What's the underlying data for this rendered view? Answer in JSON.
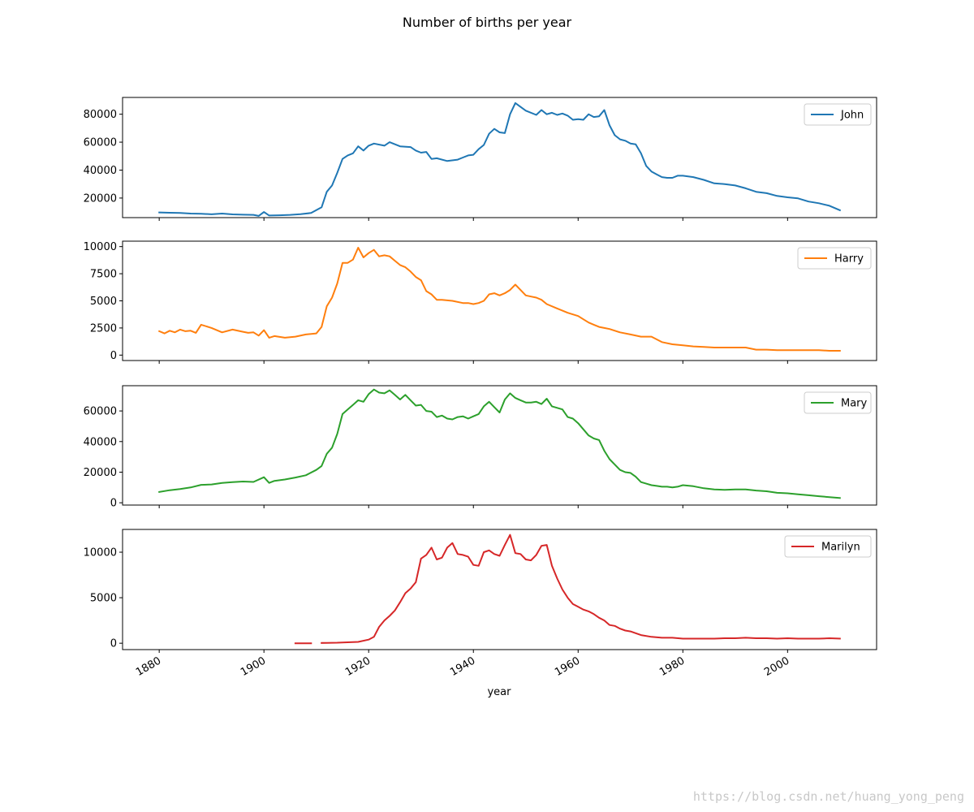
{
  "watermark": "https://blog.csdn.net/huang_yong_peng",
  "chart_data": {
    "type": "line",
    "title": "Number of births per year",
    "xlabel": "year",
    "xlim": [
      1873,
      2017
    ],
    "x_ticks": [
      1880,
      1900,
      1920,
      1940,
      1960,
      1980,
      2000
    ],
    "x_tick_labels": [
      "1880",
      "1900",
      "1920",
      "1940",
      "1960",
      "1980",
      "2000"
    ],
    "legend_position": "upper right",
    "grid": false,
    "subplots": [
      {
        "name": "John",
        "color": "#1f77b4",
        "ylim": [
          6000,
          92000
        ],
        "y_ticks": [
          20000,
          40000,
          60000,
          80000
        ],
        "y_tick_labels": [
          "20000",
          "40000",
          "60000",
          "80000"
        ],
        "x": [
          1880,
          1882,
          1884,
          1886,
          1888,
          1890,
          1892,
          1894,
          1896,
          1898,
          1899,
          1900,
          1901,
          1903,
          1905,
          1907,
          1909,
          1911,
          1912,
          1913,
          1914,
          1915,
          1916,
          1917,
          1918,
          1919,
          1920,
          1921,
          1923,
          1924,
          1926,
          1928,
          1929,
          1930,
          1931,
          1932,
          1933,
          1935,
          1937,
          1938,
          1939,
          1940,
          1941,
          1942,
          1943,
          1944,
          1945,
          1946,
          1947,
          1948,
          1950,
          1952,
          1953,
          1954,
          1955,
          1956,
          1957,
          1958,
          1959,
          1960,
          1961,
          1962,
          1963,
          1964,
          1965,
          1966,
          1967,
          1968,
          1969,
          1970,
          1971,
          1972,
          1973,
          1974,
          1975,
          1976,
          1977,
          1978,
          1979,
          1980,
          1982,
          1984,
          1986,
          1988,
          1990,
          1992,
          1994,
          1996,
          1998,
          2000,
          2002,
          2004,
          2006,
          2008,
          2010
        ],
        "values": [
          9700,
          9500,
          9300,
          8900,
          8800,
          8400,
          8900,
          8300,
          8100,
          8000,
          7200,
          10000,
          7500,
          7700,
          8000,
          8500,
          9300,
          13400,
          24500,
          29000,
          38000,
          48000,
          50500,
          52000,
          57000,
          54000,
          57500,
          59000,
          57500,
          60000,
          57000,
          56500,
          54000,
          52500,
          53000,
          48000,
          48500,
          46500,
          47500,
          49000,
          50500,
          51000,
          55000,
          58000,
          66000,
          69500,
          67000,
          66500,
          80000,
          88000,
          82500,
          79500,
          83000,
          80000,
          81000,
          79500,
          80500,
          79000,
          76000,
          76500,
          76000,
          80000,
          78000,
          78500,
          83000,
          72000,
          65000,
          62000,
          61000,
          59000,
          58500,
          52000,
          43000,
          39000,
          37000,
          35000,
          34500,
          34500,
          36000,
          36000,
          35000,
          33000,
          30500,
          30000,
          29000,
          27000,
          24500,
          23500,
          21500,
          20500,
          19800,
          17500,
          16300,
          14500,
          11300
        ]
      },
      {
        "name": "Harry",
        "color": "#ff7f0e",
        "ylim": [
          -500,
          10500
        ],
        "y_ticks": [
          0,
          2500,
          5000,
          7500,
          10000
        ],
        "y_tick_labels": [
          "0",
          "2500",
          "5000",
          "7500",
          "10000"
        ],
        "x": [
          1880,
          1881,
          1882,
          1883,
          1884,
          1885,
          1886,
          1887,
          1888,
          1890,
          1892,
          1894,
          1896,
          1897,
          1898,
          1899,
          1900,
          1901,
          1902,
          1904,
          1906,
          1908,
          1910,
          1911,
          1912,
          1913,
          1914,
          1915,
          1916,
          1917,
          1918,
          1919,
          1920,
          1921,
          1922,
          1923,
          1924,
          1925,
          1926,
          1927,
          1928,
          1929,
          1930,
          1931,
          1932,
          1933,
          1934,
          1936,
          1938,
          1939,
          1940,
          1941,
          1942,
          1943,
          1944,
          1945,
          1946,
          1947,
          1948,
          1949,
          1950,
          1951,
          1952,
          1953,
          1954,
          1956,
          1958,
          1960,
          1961,
          1962,
          1963,
          1964,
          1965,
          1966,
          1968,
          1970,
          1972,
          1974,
          1976,
          1978,
          1980,
          1982,
          1984,
          1986,
          1988,
          1990,
          1992,
          1994,
          1996,
          1998,
          2000,
          2002,
          2004,
          2006,
          2008,
          2010
        ],
        "values": [
          2200,
          2000,
          2250,
          2100,
          2350,
          2200,
          2250,
          2050,
          2800,
          2500,
          2100,
          2350,
          2150,
          2050,
          2100,
          1800,
          2300,
          1600,
          1750,
          1600,
          1700,
          1900,
          2000,
          2600,
          4500,
          5300,
          6600,
          8500,
          8500,
          8800,
          9900,
          9000,
          9400,
          9700,
          9100,
          9200,
          9100,
          8700,
          8300,
          8100,
          7700,
          7200,
          6900,
          5900,
          5600,
          5100,
          5100,
          5000,
          4800,
          4800,
          4700,
          4800,
          5000,
          5600,
          5700,
          5500,
          5700,
          6000,
          6500,
          6000,
          5500,
          5400,
          5300,
          5100,
          4700,
          4300,
          3900,
          3600,
          3300,
          3000,
          2800,
          2600,
          2500,
          2400,
          2100,
          1900,
          1700,
          1700,
          1200,
          1000,
          900,
          800,
          750,
          700,
          700,
          700,
          700,
          500,
          500,
          450,
          450,
          450,
          450,
          450,
          400,
          400
        ]
      },
      {
        "name": "Mary",
        "color": "#2ca02c",
        "ylim": [
          -1500,
          76500
        ],
        "y_ticks": [
          0,
          20000,
          40000,
          60000
        ],
        "y_tick_labels": [
          "0",
          "20000",
          "40000",
          "60000"
        ],
        "x": [
          1880,
          1882,
          1884,
          1886,
          1888,
          1890,
          1892,
          1894,
          1896,
          1898,
          1900,
          1901,
          1902,
          1904,
          1906,
          1908,
          1910,
          1911,
          1912,
          1913,
          1914,
          1915,
          1916,
          1917,
          1918,
          1919,
          1920,
          1921,
          1922,
          1923,
          1924,
          1925,
          1926,
          1927,
          1928,
          1929,
          1930,
          1931,
          1932,
          1933,
          1934,
          1935,
          1936,
          1937,
          1938,
          1939,
          1940,
          1941,
          1942,
          1943,
          1944,
          1945,
          1946,
          1947,
          1948,
          1949,
          1950,
          1951,
          1952,
          1953,
          1954,
          1955,
          1956,
          1957,
          1958,
          1959,
          1960,
          1961,
          1962,
          1963,
          1964,
          1965,
          1966,
          1967,
          1968,
          1969,
          1970,
          1971,
          1972,
          1973,
          1974,
          1975,
          1976,
          1977,
          1978,
          1979,
          1980,
          1982,
          1984,
          1986,
          1988,
          1990,
          1992,
          1994,
          1996,
          1998,
          2000,
          2002,
          2004,
          2006,
          2008,
          2010
        ],
        "values": [
          7100,
          8200,
          9000,
          10000,
          11700,
          12000,
          13000,
          13500,
          13900,
          13600,
          16700,
          13000,
          14300,
          15200,
          16500,
          18000,
          21500,
          24000,
          32000,
          36000,
          45000,
          58000,
          61000,
          64000,
          67000,
          66000,
          71000,
          74000,
          72000,
          71500,
          73500,
          70500,
          67500,
          70500,
          67000,
          63500,
          64000,
          60000,
          59500,
          56000,
          57000,
          55000,
          54500,
          56000,
          56500,
          55000,
          56500,
          58000,
          63000,
          66000,
          62500,
          59000,
          67500,
          71500,
          68500,
          67000,
          65500,
          65500,
          66000,
          64500,
          68000,
          63000,
          62000,
          61000,
          56000,
          55000,
          52000,
          48000,
          44000,
          42000,
          41000,
          34000,
          28500,
          25000,
          21500,
          20000,
          19500,
          17000,
          13500,
          12500,
          11500,
          11000,
          10500,
          10500,
          10000,
          10500,
          11500,
          10800,
          9500,
          8700,
          8500,
          8700,
          8700,
          8000,
          7500,
          6500,
          6200,
          5500,
          4900,
          4300,
          3700,
          3100
        ]
      },
      {
        "name": "Marilyn",
        "color": "#d62728",
        "ylim": [
          -700,
          12500
        ],
        "y_ticks": [
          0,
          5000,
          10000
        ],
        "y_tick_labels": [
          "0",
          "5000",
          "10000"
        ],
        "segments": [
          {
            "x": [
              1906,
              1909
            ],
            "values": [
              0,
              0
            ]
          },
          {
            "x": [
              1911,
              1912,
              1914,
              1916,
              1918,
              1920,
              1921,
              1922,
              1923,
              1924,
              1925,
              1926,
              1927,
              1928,
              1929,
              1930,
              1931,
              1932,
              1933,
              1934,
              1935,
              1936,
              1937,
              1938,
              1939,
              1940,
              1941,
              1942,
              1943,
              1944,
              1945,
              1946,
              1947,
              1948,
              1949,
              1950,
              1951,
              1952,
              1953,
              1954,
              1955,
              1956,
              1957,
              1958,
              1959,
              1960,
              1961,
              1962,
              1963,
              1964,
              1965,
              1966,
              1967,
              1968,
              1969,
              1970,
              1971,
              1972,
              1974,
              1976,
              1978,
              1980,
              1982,
              1984,
              1986,
              1988,
              1990,
              1992,
              1994,
              1996,
              1998,
              2000,
              2002,
              2004,
              2006,
              2008,
              2010
            ],
            "values": [
              30,
              40,
              60,
              100,
              150,
              400,
              700,
              1800,
              2500,
              3000,
              3600,
              4500,
              5500,
              6000,
              6700,
              9300,
              9700,
              10500,
              9200,
              9400,
              10500,
              11000,
              9800,
              9700,
              9500,
              8600,
              8500,
              10000,
              10200,
              9800,
              9600,
              10800,
              11900,
              9900,
              9800,
              9200,
              9100,
              9700,
              10700,
              10800,
              8500,
              7100,
              5900,
              5000,
              4300,
              4000,
              3700,
              3500,
              3200,
              2800,
              2500,
              2000,
              1900,
              1600,
              1400,
              1300,
              1100,
              900,
              700,
              600,
              600,
              500,
              500,
              500,
              500,
              550,
              550,
              600,
              550,
              550,
              500,
              550,
              500,
              500,
              500,
              550,
              500
            ]
          }
        ]
      }
    ]
  }
}
